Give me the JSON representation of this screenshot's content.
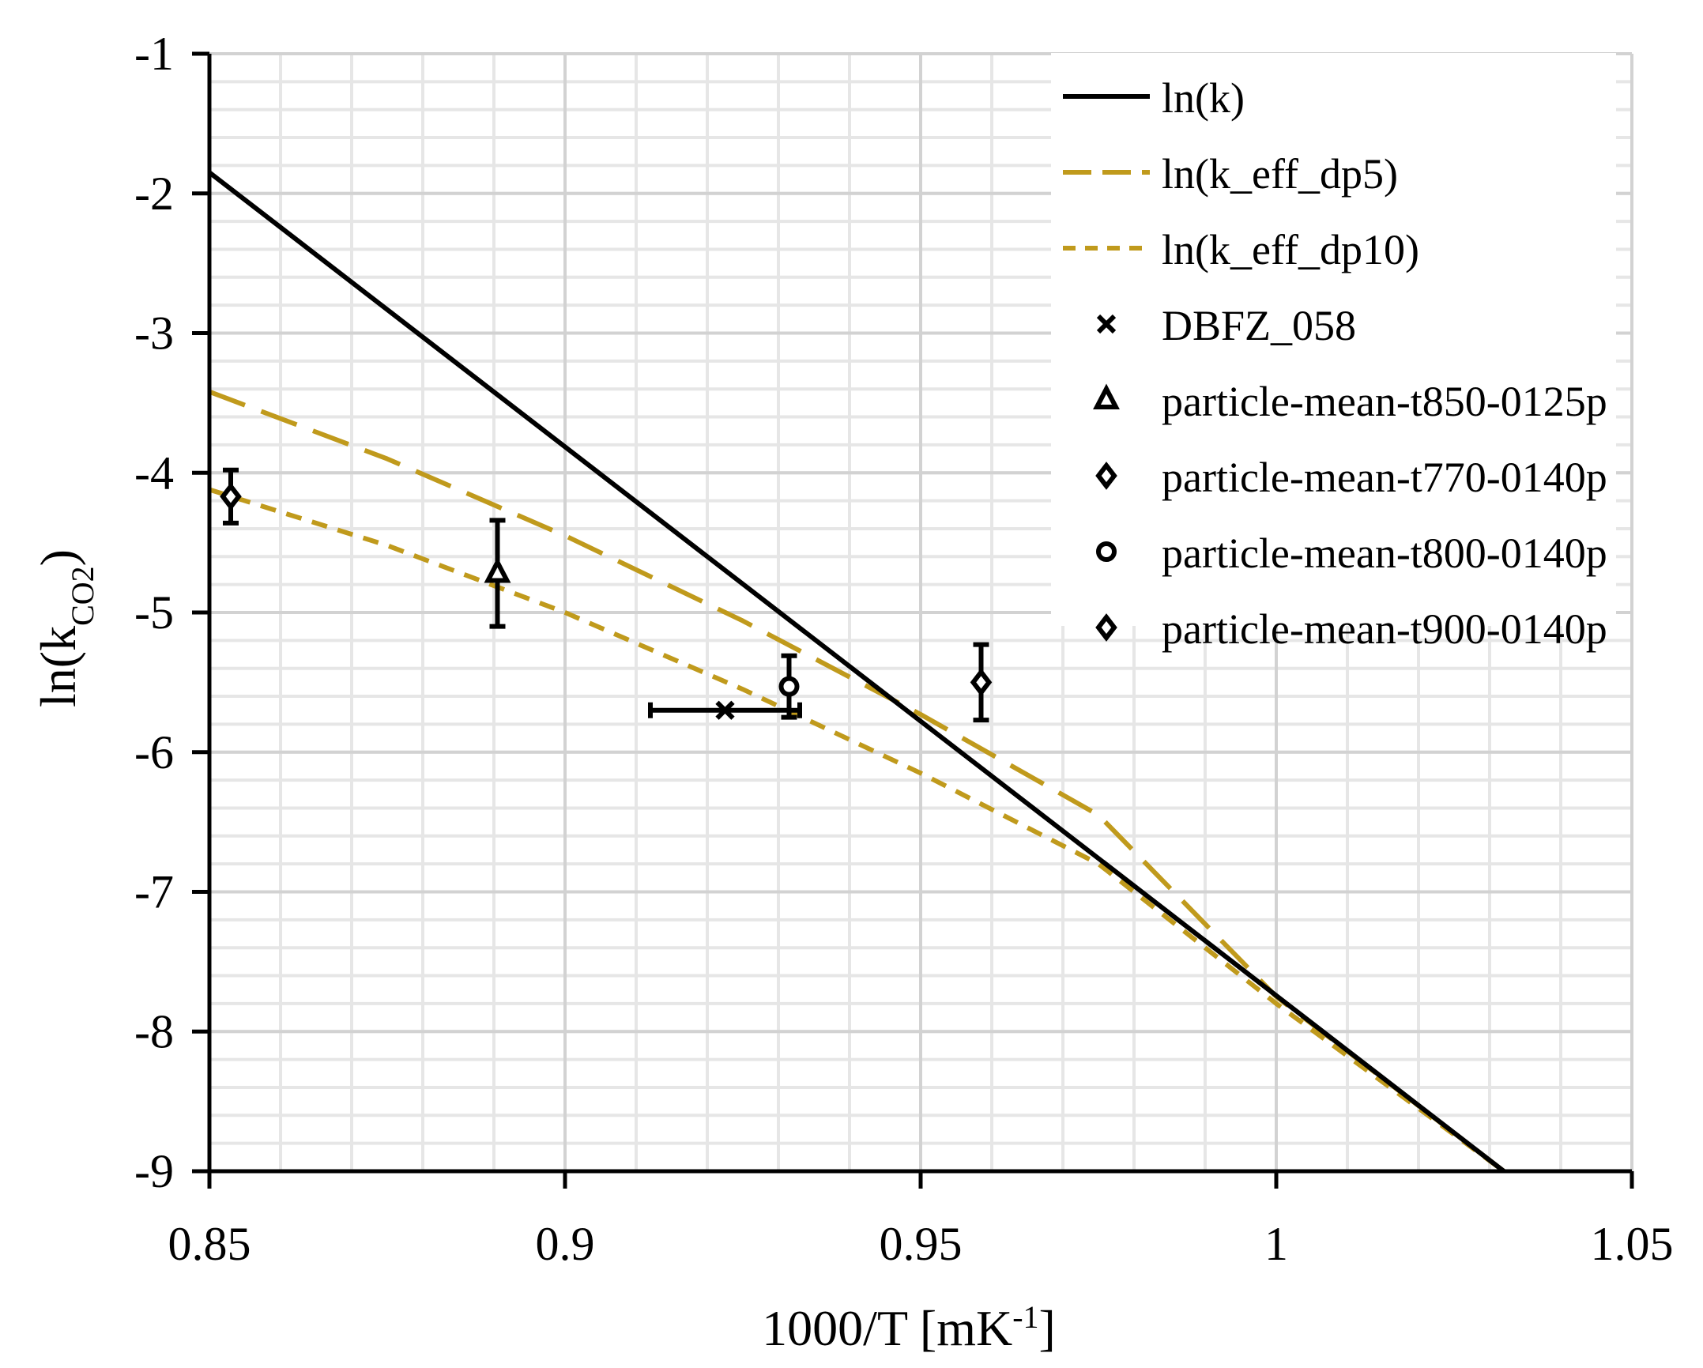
{
  "chart_data": {
    "type": "line",
    "xlabel": "1000/T  [mK",
    "xlabel_sup": "-1",
    "xlabel_end": "]",
    "ylabel": "ln(k",
    "ylabel_sub": "CO2",
    "ylabel_end": ")",
    "xlim": [
      0.85,
      1.05
    ],
    "ylim": [
      -9,
      -1
    ],
    "x_ticks": [
      0.85,
      0.9,
      0.95,
      1,
      1.05
    ],
    "x_tick_labels": [
      "0.85",
      "0.9",
      "0.95",
      "1",
      "1.05"
    ],
    "y_ticks": [
      -1,
      -2,
      -3,
      -4,
      -5,
      -6,
      -7,
      -8,
      -9
    ],
    "y_tick_labels": [
      "-1",
      "-2",
      "-3",
      "-4",
      "-5",
      "-6",
      "-7",
      "-8",
      "-9"
    ],
    "grid": true,
    "legend_position": "top-right",
    "series": [
      {
        "name": "ln(k)",
        "kind": "line",
        "style": "solid",
        "color": "#000000",
        "x": [
          0.85,
          1.032
        ],
        "y": [
          -1.85,
          -9.0
        ]
      },
      {
        "name": "ln(k_eff_dp5)",
        "kind": "line",
        "style": "long-dash",
        "color": "#C09A1C",
        "x": [
          0.85,
          0.875,
          0.9,
          0.925,
          0.95,
          0.975,
          1.0,
          1.032
        ],
        "y": [
          -3.42,
          -3.9,
          -4.45,
          -5.06,
          -5.73,
          -6.45,
          -7.75,
          -9.0
        ]
      },
      {
        "name": "ln(k_eff_dp10)",
        "kind": "line",
        "style": "short-dash",
        "color": "#C09A1C",
        "x": [
          0.85,
          0.875,
          0.9,
          0.925,
          0.95,
          0.975,
          1.0,
          1.032
        ],
        "y": [
          -4.12,
          -4.52,
          -5.0,
          -5.55,
          -6.15,
          -6.8,
          -7.8,
          -9.0
        ]
      },
      {
        "name": "DBFZ_058",
        "kind": "points",
        "marker": "x",
        "color": "#000000",
        "points": [
          {
            "x": 0.9225,
            "y": -5.7,
            "xerr": 0.0105,
            "yerr": 0
          }
        ]
      },
      {
        "name": "particle-mean-t850-0125p",
        "kind": "points",
        "marker": "triangle",
        "color": "#000000",
        "points": [
          {
            "x": 0.8905,
            "y": -4.72,
            "xerr": 0,
            "yerr": 0.38
          }
        ]
      },
      {
        "name": "particle-mean-t770-0140p",
        "kind": "points",
        "marker": "diamond",
        "color": "#000000",
        "points": [
          {
            "x": 0.9585,
            "y": -5.5,
            "xerr": 0,
            "yerr": 0.27
          }
        ]
      },
      {
        "name": "particle-mean-t800-0140p",
        "kind": "points",
        "marker": "circle",
        "color": "#000000",
        "points": [
          {
            "x": 0.9315,
            "y": -5.53,
            "xerr": 0,
            "yerr": 0.22
          }
        ]
      },
      {
        "name": "particle-mean-t900-0140p",
        "kind": "points",
        "marker": "diamond",
        "color": "#000000",
        "points": [
          {
            "x": 0.853,
            "y": -4.17,
            "xerr": 0,
            "yerr": 0.19
          }
        ]
      }
    ]
  }
}
